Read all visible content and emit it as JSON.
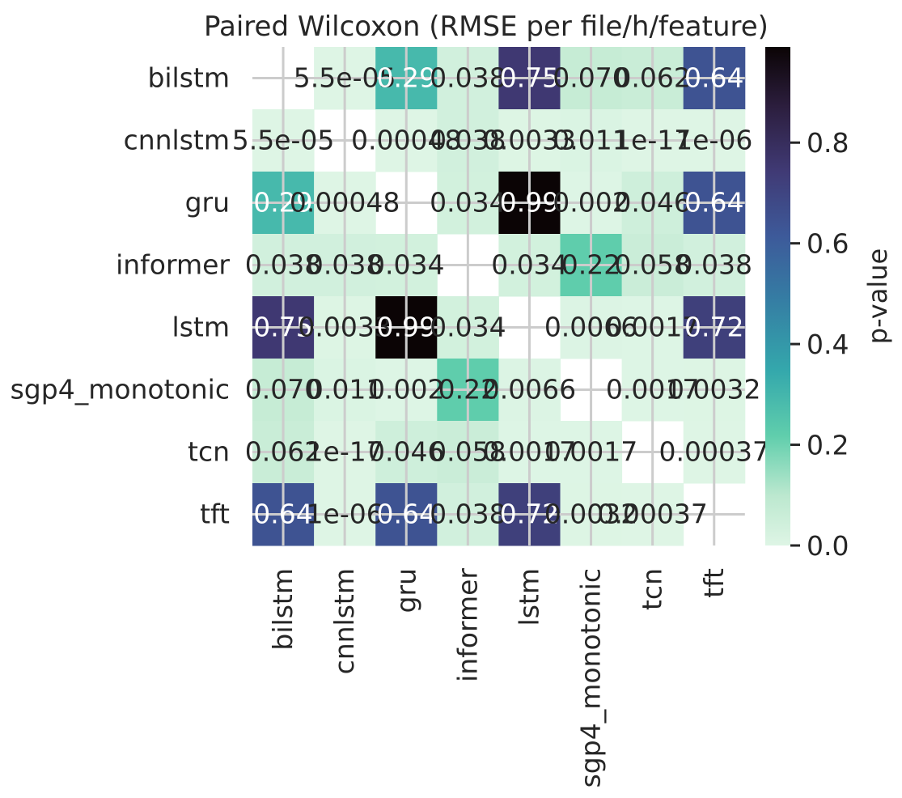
{
  "chart_data": {
    "type": "heatmap",
    "title": "Paired Wilcoxon (RMSE per file/h/feature)",
    "rows": [
      "bilstm",
      "cnnlstm",
      "gru",
      "informer",
      "lstm",
      "sgp4_monotonic",
      "tcn",
      "tft"
    ],
    "cols": [
      "bilstm",
      "cnnlstm",
      "gru",
      "informer",
      "lstm",
      "sgp4_monotonic",
      "tcn",
      "tft"
    ],
    "values": [
      [
        null,
        5.5e-05,
        0.29,
        0.038,
        0.75,
        0.07,
        0.062,
        0.64
      ],
      [
        5.5e-05,
        null,
        0.00048,
        0.038,
        0.0033,
        0.011,
        1e-17,
        1e-06
      ],
      [
        0.29,
        0.00048,
        null,
        0.034,
        0.99,
        0.002,
        0.046,
        0.64
      ],
      [
        0.038,
        0.038,
        0.034,
        null,
        0.034,
        0.22,
        0.058,
        0.038
      ],
      [
        0.75,
        0.0033,
        0.99,
        0.034,
        null,
        0.0066,
        0.0017,
        0.72
      ],
      [
        0.07,
        0.011,
        0.002,
        0.22,
        0.0066,
        null,
        0.0017,
        0.0032
      ],
      [
        0.062,
        1e-17,
        0.046,
        0.058,
        0.0017,
        0.0017,
        null,
        0.00037
      ],
      [
        0.64,
        1e-06,
        0.64,
        0.038,
        0.72,
        0.0032,
        0.00037,
        null
      ]
    ],
    "annotations": [
      [
        "",
        "5.5e-05",
        "0.29",
        "0.038",
        "0.75",
        "0.070",
        "0.062",
        "0.64"
      ],
      [
        "5.5e-05",
        "",
        "0.00048",
        "0.038",
        "0.0033",
        "0.011",
        "1e-17",
        "1e-06"
      ],
      [
        "0.29",
        "0.00048",
        "",
        "0.034",
        "0.99",
        "0.002",
        "0.046",
        "0.64"
      ],
      [
        "0.038",
        "0.038",
        "0.034",
        "",
        "0.034",
        "0.22",
        "0.058",
        "0.038"
      ],
      [
        "0.75",
        "0.0033",
        "0.99",
        "0.034",
        "",
        "0.0066",
        "0.0017",
        "0.72"
      ],
      [
        "0.070",
        "0.011",
        "0.002",
        "0.22",
        "0.0066",
        "",
        "0.0017",
        "0.0032"
      ],
      [
        "0.062",
        "1e-17",
        "0.046",
        "0.058",
        "0.0017",
        "0.0017",
        "",
        "0.00037"
      ],
      [
        "0.64",
        "1e-06",
        "0.64",
        "0.038",
        "0.72",
        "0.0032",
        "0.00037",
        ""
      ]
    ],
    "colorbar": {
      "label": "p-value",
      "range": [
        0,
        0.99
      ],
      "ticks": [
        0.0,
        0.2,
        0.4,
        0.6,
        0.8
      ],
      "tick_labels": [
        "0.0",
        "0.2",
        "0.4",
        "0.6",
        "0.8"
      ],
      "colormap": "mako_r",
      "colors": [
        "#def5e5",
        "#49c1ad",
        "#357ba3",
        "#3e356b",
        "#0b0405"
      ]
    },
    "grid": true,
    "grid_color": "#cccccc"
  }
}
